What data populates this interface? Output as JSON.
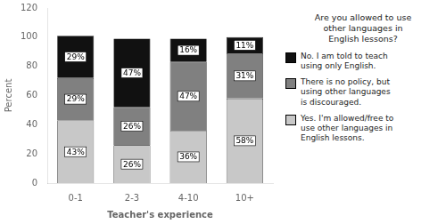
{
  "chart_data": {
    "type": "bar",
    "stacked": true,
    "categories": [
      "0-1",
      "2-3",
      "4-10",
      "10+"
    ],
    "series": [
      {
        "name": "Yes. I'm allowed/free to\nuse other languages in\nEnglish lessons.",
        "color": "#c8c8c8",
        "values": [
          43,
          26,
          36,
          58
        ],
        "value_labels": [
          "43%",
          "26%",
          "36%",
          "58%"
        ]
      },
      {
        "name": "There is no policy, but\nusing other languages\nis discouraged.",
        "color": "#808080",
        "values": [
          29,
          26,
          47,
          31
        ],
        "value_labels": [
          "29%",
          "26%",
          "47%",
          "31%"
        ]
      },
      {
        "name": "No. I am told to teach\nusing only English.",
        "color": "#111111",
        "values": [
          29,
          47,
          16,
          11
        ],
        "value_labels": [
          "29%",
          "47%",
          "16%",
          "11%"
        ]
      }
    ],
    "xlabel": "Teacher's experience",
    "ylabel": "Percent",
    "ylim": [
      0,
      120
    ],
    "yticks": [
      0,
      20,
      40,
      60,
      80,
      100,
      120
    ],
    "legend": "right",
    "legend_title": "Are you allowed to use\nother languages in\nEnglish lessons?",
    "data_labels": true,
    "grid": false
  }
}
